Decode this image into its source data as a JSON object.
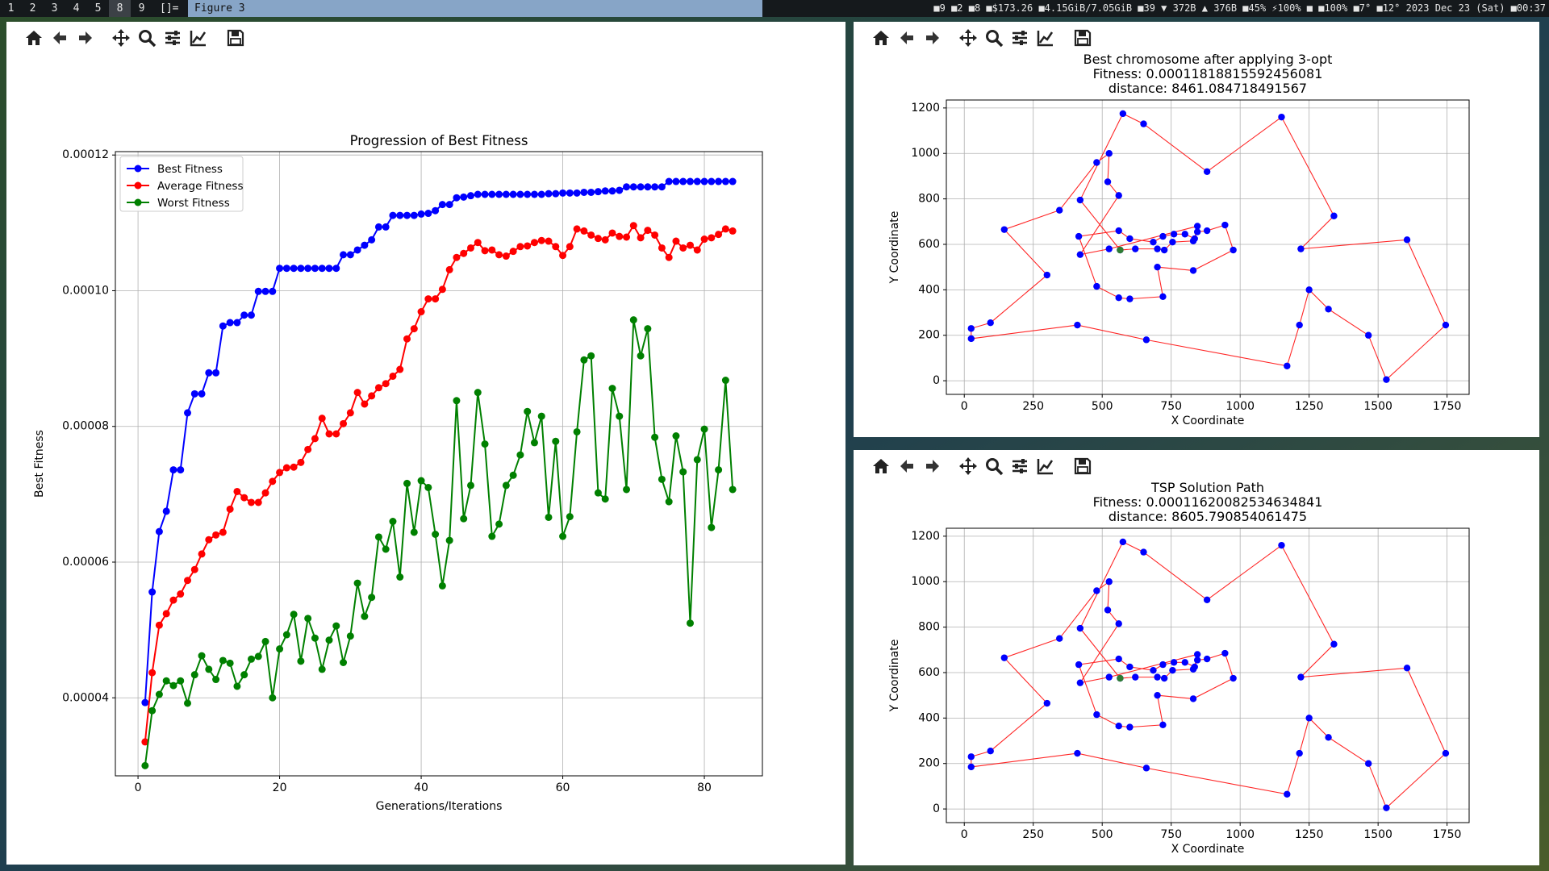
{
  "topbar": {
    "workspaces": [
      "1",
      "2",
      "3",
      "4",
      "5",
      "8",
      "9"
    ],
    "active_workspace": "8",
    "layout_symbol": "[]=",
    "window_title": "Figure 3",
    "status": "■9 ■2 ■8 ■$173.26 ■4.15GiB/7.05GiB ■39 ▼ 372B ▲ 376B ■45% ⚡100% ■ ■100% ■7° ■12° 2023 Dec 23 (Sat) ■00:37"
  },
  "toolbar_icons": [
    "home-icon",
    "back-arrow-icon",
    "forward-arrow-icon",
    "pan-move-icon",
    "zoom-magnifier-icon",
    "configure-subplots-icon",
    "edit-axis-icon",
    "save-figure-icon"
  ],
  "chart_data": [
    {
      "type": "line",
      "title": "Progression of Best Fitness",
      "xlabel": "Generations/Iterations",
      "ylabel": "Best Fitness",
      "xlim": [
        -3.2,
        88.2
      ],
      "ylim": [
        2.85e-05,
        0.0001205
      ],
      "xticks": [
        0,
        20,
        40,
        60,
        80
      ],
      "yticks": [
        4e-05,
        6e-05,
        8e-05,
        0.0001,
        0.00012
      ],
      "ytick_labels": [
        "0.00004",
        "0.00006",
        "0.00008",
        "0.00010",
        "0.00012"
      ],
      "grid": true,
      "legend_position": "top-left",
      "x": [
        1,
        2,
        3,
        4,
        5,
        6,
        7,
        8,
        9,
        10,
        11,
        12,
        13,
        14,
        15,
        16,
        17,
        18,
        19,
        20,
        21,
        22,
        23,
        24,
        25,
        26,
        27,
        28,
        29,
        30,
        31,
        32,
        33,
        34,
        35,
        36,
        37,
        38,
        39,
        40,
        41,
        42,
        43,
        44,
        45,
        46,
        47,
        48,
        49,
        50,
        51,
        52,
        53,
        54,
        55,
        56,
        57,
        58,
        59,
        60,
        61,
        62,
        63,
        64,
        65,
        66,
        67,
        68,
        69,
        70,
        71,
        72,
        73,
        74,
        75,
        76,
        77,
        78,
        79,
        80,
        81,
        82,
        83,
        84
      ],
      "series": [
        {
          "name": "Best Fitness",
          "color": "#0000ff",
          "values": [
            3.93e-05,
            5.56e-05,
            6.45e-05,
            6.75e-05,
            7.36e-05,
            7.36e-05,
            8.2e-05,
            8.48e-05,
            8.48e-05,
            8.79e-05,
            8.79e-05,
            9.48e-05,
            9.53e-05,
            9.53e-05,
            9.64e-05,
            9.64e-05,
            9.99e-05,
            9.99e-05,
            9.99e-05,
            0.0001033,
            0.0001033,
            0.0001033,
            0.0001033,
            0.0001033,
            0.0001033,
            0.0001033,
            0.0001033,
            0.0001033,
            0.0001053,
            0.0001053,
            0.000106,
            0.0001067,
            0.0001075,
            0.0001094,
            0.0001094,
            0.0001111,
            0.0001111,
            0.0001111,
            0.0001111,
            0.0001113,
            0.0001114,
            0.0001118,
            0.0001127,
            0.0001127,
            0.0001137,
            0.0001138,
            0.000114,
            0.0001142,
            0.0001142,
            0.0001142,
            0.0001142,
            0.0001142,
            0.0001142,
            0.0001142,
            0.0001142,
            0.0001142,
            0.0001142,
            0.0001143,
            0.0001143,
            0.0001144,
            0.0001144,
            0.0001144,
            0.0001145,
            0.0001145,
            0.0001146,
            0.0001147,
            0.0001147,
            0.0001148,
            0.0001153,
            0.0001153,
            0.0001153,
            0.0001153,
            0.0001153,
            0.0001153,
            0.0001161,
            0.0001161,
            0.0001161,
            0.0001161,
            0.0001161,
            0.0001161,
            0.0001161,
            0.0001161,
            0.0001161,
            0.0001161
          ]
        },
        {
          "name": "Average Fitness",
          "color": "#ff0000",
          "values": [
            3.35e-05,
            4.37e-05,
            5.07e-05,
            5.24e-05,
            5.44e-05,
            5.53e-05,
            5.73e-05,
            5.89e-05,
            6.12e-05,
            6.33e-05,
            6.4e-05,
            6.44e-05,
            6.78e-05,
            7.04e-05,
            6.95e-05,
            6.88e-05,
            6.88e-05,
            7.02e-05,
            7.19e-05,
            7.32e-05,
            7.39e-05,
            7.4e-05,
            7.47e-05,
            7.66e-05,
            7.82e-05,
            8.12e-05,
            7.89e-05,
            7.89e-05,
            8.04e-05,
            8.2e-05,
            8.5e-05,
            8.33e-05,
            8.45e-05,
            8.57e-05,
            8.63e-05,
            8.74e-05,
            8.84e-05,
            9.29e-05,
            9.44e-05,
            9.69e-05,
            9.88e-05,
            9.88e-05,
            0.0001002,
            0.0001031,
            0.0001049,
            0.0001055,
            0.0001063,
            0.0001071,
            0.0001059,
            0.000106,
            0.0001053,
            0.0001051,
            0.0001058,
            0.0001065,
            0.0001066,
            0.0001071,
            0.0001074,
            0.0001073,
            0.0001065,
            0.0001052,
            0.0001065,
            0.0001091,
            0.0001088,
            0.0001082,
            0.0001077,
            0.0001075,
            0.0001085,
            0.000108,
            0.0001079,
            0.0001096,
            0.0001078,
            0.0001089,
            0.0001082,
            0.0001063,
            0.0001049,
            0.0001073,
            0.0001063,
            0.0001067,
            0.000106,
            0.0001076,
            0.0001078,
            0.0001083,
            0.0001091,
            0.0001088
          ]
        },
        {
          "name": "Worst Fitness",
          "color": "#008000",
          "values": [
            3e-05,
            3.81e-05,
            4.05e-05,
            4.25e-05,
            4.18e-05,
            4.25e-05,
            3.92e-05,
            4.34e-05,
            4.62e-05,
            4.42e-05,
            4.27e-05,
            4.55e-05,
            4.51e-05,
            4.17e-05,
            4.34e-05,
            4.57e-05,
            4.61e-05,
            4.83e-05,
            4e-05,
            4.72e-05,
            4.93e-05,
            5.23e-05,
            4.54e-05,
            5.17e-05,
            4.88e-05,
            4.42e-05,
            4.85e-05,
            5.06e-05,
            4.52e-05,
            4.91e-05,
            5.69e-05,
            5.2e-05,
            5.48e-05,
            6.37e-05,
            6.19e-05,
            6.6e-05,
            5.78e-05,
            7.16e-05,
            6.44e-05,
            7.2e-05,
            7.1e-05,
            6.41e-05,
            5.65e-05,
            6.32e-05,
            8.38e-05,
            6.64e-05,
            7.13e-05,
            8.5e-05,
            7.74e-05,
            6.38e-05,
            6.56e-05,
            7.13e-05,
            7.28e-05,
            7.58e-05,
            8.22e-05,
            7.76e-05,
            8.15e-05,
            6.66e-05,
            7.78e-05,
            6.38e-05,
            6.67e-05,
            7.92e-05,
            8.98e-05,
            9.04e-05,
            7.02e-05,
            6.93e-05,
            8.56e-05,
            8.15e-05,
            7.07e-05,
            9.57e-05,
            9.04e-05,
            9.44e-05,
            7.84e-05,
            7.22e-05,
            6.89e-05,
            7.86e-05,
            7.33e-05,
            5.1e-05,
            7.51e-05,
            7.96e-05,
            6.51e-05,
            7.36e-05,
            8.68e-05,
            7.07e-05
          ]
        }
      ]
    },
    {
      "type": "scatter",
      "title_lines": [
        "Best chromosome after applying 3-opt",
        "Fitness: 0.00011818815592456081",
        "distance: 8461.084718491567"
      ],
      "xlabel": "X Coordinate",
      "ylabel": "Y Coordinate",
      "xlim": [
        -65,
        1830
      ],
      "ylim": [
        -60,
        1235
      ],
      "xticks": [
        0,
        250,
        500,
        750,
        1000,
        1250,
        1500,
        1750
      ],
      "yticks": [
        0,
        200,
        400,
        600,
        800,
        1000,
        1200
      ],
      "grid": true,
      "start_point": [
        565,
        575
      ],
      "route": [
        [
          565,
          575
        ],
        [
          620,
          580
        ],
        [
          700,
          580
        ],
        [
          725,
          575
        ],
        [
          755,
          610
        ],
        [
          830,
          615
        ],
        [
          845,
          655
        ],
        [
          880,
          660
        ],
        [
          945,
          685
        ],
        [
          975,
          575
        ],
        [
          830,
          485
        ],
        [
          700,
          500
        ],
        [
          720,
          370
        ],
        [
          600,
          360
        ],
        [
          560,
          365
        ],
        [
          480,
          415
        ],
        [
          415,
          635
        ],
        [
          560,
          660
        ],
        [
          600,
          625
        ],
        [
          685,
          610
        ],
        [
          720,
          635
        ],
        [
          760,
          645
        ],
        [
          800,
          645
        ],
        [
          835,
          625
        ],
        [
          845,
          680
        ],
        [
          525,
          580
        ],
        [
          420,
          555
        ],
        [
          560,
          815
        ],
        [
          520,
          875
        ],
        [
          525,
          1000
        ],
        [
          480,
          960
        ],
        [
          345,
          750
        ],
        [
          145,
          665
        ],
        [
          300,
          465
        ],
        [
          95,
          255
        ],
        [
          25,
          230
        ],
        [
          25,
          185
        ],
        [
          410,
          245
        ],
        [
          660,
          180
        ],
        [
          1170,
          65
        ],
        [
          1215,
          245
        ],
        [
          1250,
          400
        ],
        [
          1320,
          315
        ],
        [
          1465,
          200
        ],
        [
          1530,
          5
        ],
        [
          1745,
          245
        ],
        [
          1605,
          620
        ],
        [
          1220,
          580
        ],
        [
          1340,
          725
        ],
        [
          1150,
          1160
        ],
        [
          880,
          920
        ],
        [
          650,
          1130
        ],
        [
          575,
          1175
        ],
        [
          420,
          795
        ],
        [
          565,
          575
        ]
      ],
      "point_color": "#0000ff",
      "route_color": "#ff0000"
    },
    {
      "type": "scatter",
      "title_lines": [
        "TSP Solution Path",
        "Fitness: 0.00011620082534634841",
        "distance: 8605.790854061475"
      ],
      "xlabel": "X Coordinate",
      "ylabel": "Y Coordinate",
      "xlim": [
        -65,
        1830
      ],
      "ylim": [
        -60,
        1235
      ],
      "xticks": [
        0,
        250,
        500,
        750,
        1000,
        1250,
        1500,
        1750
      ],
      "yticks": [
        0,
        200,
        400,
        600,
        800,
        1000,
        1200
      ],
      "grid": true,
      "start_point": [
        565,
        575
      ],
      "route": [
        [
          565,
          575
        ],
        [
          620,
          580
        ],
        [
          700,
          580
        ],
        [
          725,
          575
        ],
        [
          755,
          610
        ],
        [
          830,
          615
        ],
        [
          845,
          655
        ],
        [
          880,
          660
        ],
        [
          945,
          685
        ],
        [
          975,
          575
        ],
        [
          830,
          485
        ],
        [
          700,
          500
        ],
        [
          720,
          370
        ],
        [
          600,
          360
        ],
        [
          560,
          365
        ],
        [
          480,
          415
        ],
        [
          415,
          635
        ],
        [
          560,
          660
        ],
        [
          600,
          625
        ],
        [
          685,
          610
        ],
        [
          720,
          635
        ],
        [
          760,
          645
        ],
        [
          800,
          645
        ],
        [
          835,
          625
        ],
        [
          845,
          680
        ],
        [
          525,
          580
        ],
        [
          420,
          555
        ],
        [
          560,
          815
        ],
        [
          520,
          875
        ],
        [
          525,
          1000
        ],
        [
          480,
          960
        ],
        [
          345,
          750
        ],
        [
          145,
          665
        ],
        [
          300,
          465
        ],
        [
          95,
          255
        ],
        [
          25,
          230
        ],
        [
          25,
          185
        ],
        [
          410,
          245
        ],
        [
          660,
          180
        ],
        [
          1170,
          65
        ],
        [
          1215,
          245
        ],
        [
          1250,
          400
        ],
        [
          1320,
          315
        ],
        [
          1465,
          200
        ],
        [
          1530,
          5
        ],
        [
          1745,
          245
        ],
        [
          1605,
          620
        ],
        [
          1220,
          580
        ],
        [
          1340,
          725
        ],
        [
          1150,
          1160
        ],
        [
          880,
          920
        ],
        [
          650,
          1130
        ],
        [
          575,
          1175
        ],
        [
          420,
          795
        ],
        [
          565,
          575
        ]
      ],
      "point_color": "#0000ff",
      "route_color": "#ff0000"
    }
  ]
}
